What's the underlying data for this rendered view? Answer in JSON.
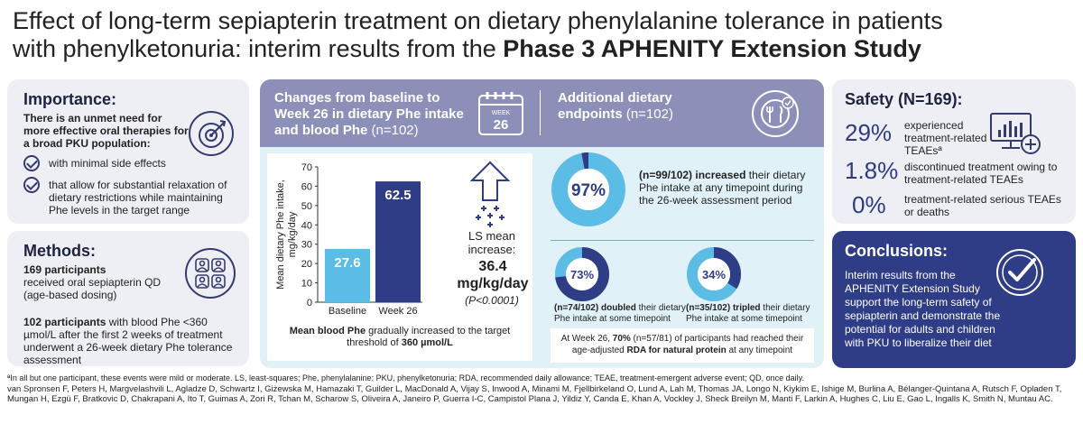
{
  "title": {
    "line1": "Effect of long-term sepiapterin treatment on dietary phenylalanine tolerance in patients",
    "line2_plain": "with phenylketonuria: interim results from the ",
    "line2_bold": "Phase 3 APHENITY Extension Study"
  },
  "importance": {
    "heading": "Importance:",
    "lead": "There is an unmet need for more effective oral therapies for a broad PKU population:",
    "items": [
      "with minimal side effects",
      "that allow for substantial relaxation of dietary restrictions while maintaining Phe levels in the target range"
    ]
  },
  "methods": {
    "heading": "Methods:",
    "p1_bold": "169 participants",
    "p1_rest": "received oral sepiapterin QD (age-based dosing)",
    "p2_bold": "102 participants",
    "p2_rest": " with blood Phe <360 µmol/L after the first 2 weeks of treatment underwent a 26-week dietary Phe tolerance assessment"
  },
  "changes": {
    "heading_bold": "Changes from baseline to Week 26 in dietary Phe intake and blood Phe",
    "heading_n": " (n=102)",
    "calendar_label": "WEEK",
    "calendar_num": "26",
    "ls_label": "LS mean increase:",
    "ls_value": "36.4 mg/kg/day",
    "ls_p": "(P<0.0001)",
    "footnote_bold1": "Mean blood Phe",
    "footnote_rest1": " gradually increased to the target threshold of ",
    "footnote_bold2": "360 µmol/L"
  },
  "chart_data": {
    "type": "bar",
    "categories": [
      "Baseline",
      "Week 26"
    ],
    "values": [
      27.6,
      62.5
    ],
    "value_labels": [
      "27.6",
      "62.5"
    ],
    "ylabel": "Mean dietary Phe intake, mg/kg/day",
    "ylim": [
      0,
      70
    ],
    "yticks": [
      "0",
      "10",
      "20",
      "30",
      "40",
      "50",
      "60",
      "70"
    ],
    "grid": false,
    "colors": [
      "#5bbde6",
      "#2f3c86"
    ]
  },
  "additional": {
    "heading_bold": "Additional dietary endpoints",
    "heading_n": " (n=102)",
    "big_pct": "97%",
    "big_pct_value": 97,
    "big_text_bold": "(n=99/102) increased",
    "big_text_rest": " their dietary Phe intake at any timepoint during the 26-week assessment period",
    "d1_pct": "73%",
    "d1_value": 73,
    "d1_bold": "(n=74/102) doubled",
    "d1_rest": " their dietary Phe intake at some timepoint",
    "d2_pct": "34%",
    "d2_value": 34,
    "d2_bold": "(n=35/102) tripled",
    "d2_rest": " their dietary Phe intake at some timepoint",
    "rda_pre": "At Week 26, ",
    "rda_bold1": "70%",
    "rda_mid": " (n=57/81) of participants had reached their age-adjusted ",
    "rda_bold2": "RDA for natural protein",
    "rda_post": " at any timepoint"
  },
  "safety": {
    "heading": "Safety (N=169):",
    "rows": [
      {
        "pct": "29%",
        "text": "experienced treatment-related TEAEsª"
      },
      {
        "pct": "1.8%",
        "text": "discontinued treatment owing to treatment-related TEAEs"
      },
      {
        "pct": "0%",
        "text": "treatment-related serious TEAEs or deaths"
      }
    ]
  },
  "conclusions": {
    "heading": "Conclusions:",
    "text": "Interim results from the APHENITY Extension Study support the long-term safety of sepiapterin and demonstrate the potential for adults and children with PKU to liberalize their diet"
  },
  "footer": {
    "abbrev": "ªIn all but one participant, these events were mild or moderate. LS, least-squares; Phe, phenylalanine; PKU, phenylketonuria; RDA, recommended daily allowance; TEAE, treatment-emergent adverse event; QD, once daily.",
    "authors": "van Spronsen F, Peters H, Margvelashvili L, Agladze D, Schwartz I, Giżewska M, Hamazaki T, Guilder L, MacDonald A, Vijay S, Inwood A, Minami M, Fjellbirkeland O, Lund A, Lah M, Thomas JA, Longo N, Kiykim E, Ishige M, Burlina A, Bélanger-Quintana A, Rutsch F, Opladen T, Mungan H, Ezgü F, Bratkovic D, Chakrapani A, Ito T, Guimas A, Zori R, Tchan M, Scharow S, Oliveira A, Janeiro P, Guerra I-C, Campistol Plana J, Yildiz Y, Canda E, Khan A, Vockley J, Sheck Breilyn M, Manti F, Larkin A, Hughes C, Liu E, Gao L, Ingalls K, Smith N, Muntau AC."
  }
}
